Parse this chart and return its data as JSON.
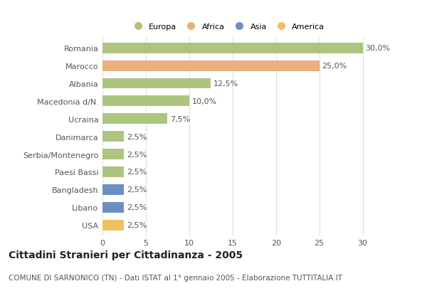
{
  "countries": [
    "Romania",
    "Marocco",
    "Albania",
    "Macedonia d/N.",
    "Ucraina",
    "Danimarca",
    "Serbia/Montenegro",
    "Paesi Bassi",
    "Bangladesh",
    "Libano",
    "USA"
  ],
  "values": [
    30.0,
    25.0,
    12.5,
    10.0,
    7.5,
    2.5,
    2.5,
    2.5,
    2.5,
    2.5,
    2.5
  ],
  "bar_colors": [
    "#adc47e",
    "#e8b07a",
    "#adc47e",
    "#adc47e",
    "#adc47e",
    "#adc47e",
    "#adc47e",
    "#adc47e",
    "#6b8fc2",
    "#6b8fc2",
    "#f0c060"
  ],
  "labels": [
    "30,0%",
    "25,0%",
    "12,5%",
    "10,0%",
    "7,5%",
    "2,5%",
    "2,5%",
    "2,5%",
    "2,5%",
    "2,5%",
    "2,5%"
  ],
  "legend_labels": [
    "Europa",
    "Africa",
    "Asia",
    "America"
  ],
  "legend_colors": [
    "#adc47e",
    "#e8b07a",
    "#6b8fc2",
    "#f0c060"
  ],
  "xlim": [
    0,
    32
  ],
  "xticks": [
    0,
    5,
    10,
    15,
    20,
    25,
    30
  ],
  "title": "Cittadini Stranieri per Cittadinanza - 2005",
  "subtitle": "COMUNE DI SARNONICO (TN) - Dati ISTAT al 1° gennaio 2005 - Elaborazione TUTTITALIA.IT",
  "plot_bg_color": "#ffffff",
  "fig_bg_color": "#ffffff",
  "grid_color": "#e0e0e0",
  "bar_height": 0.6,
  "label_fontsize": 8,
  "tick_fontsize": 8,
  "title_fontsize": 10,
  "subtitle_fontsize": 7.5,
  "label_color": "#555555",
  "tick_color": "#555555"
}
